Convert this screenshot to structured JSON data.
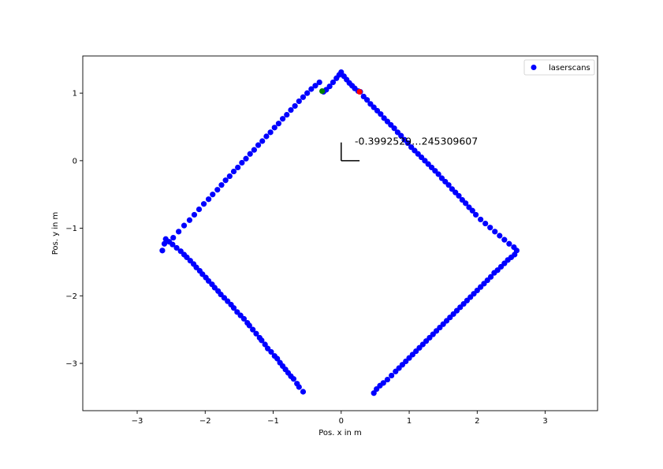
{
  "chart_data": {
    "type": "scatter",
    "title": "",
    "xlabel": "Pos. x in m",
    "ylabel": "Pos. y in m",
    "xlim": [
      -3.8,
      3.77
    ],
    "ylim": [
      -3.7,
      1.55
    ],
    "x_ticks": [
      -3,
      -2,
      -1,
      0,
      1,
      2,
      3
    ],
    "x_tick_labels": [
      "−3",
      "−2",
      "−1",
      "0",
      "1",
      "2",
      "3"
    ],
    "y_ticks": [
      1,
      0,
      -1,
      -2,
      -3
    ],
    "y_tick_labels": [
      "1",
      "0",
      "−1",
      "−2",
      "−3"
    ],
    "grid": false,
    "legend": {
      "entries": [
        "laserscans"
      ],
      "placement": "top-right"
    },
    "annotation": {
      "text": "-0.3992529…245309607",
      "x": 0.2,
      "y": 0.24
    },
    "axes_indicator": {
      "origin": [
        0,
        0
      ],
      "x_end": [
        0.27,
        0
      ],
      "y_end": [
        0,
        0.27
      ]
    },
    "colors": {
      "scan": "#0000ff",
      "green_marker": "#008000",
      "red_marker": "#ff0000",
      "axes": "#000000"
    },
    "series": [
      {
        "name": "laserscans",
        "points": [
          [
            -0.56,
            -3.42
          ],
          [
            -0.62,
            -3.35
          ],
          [
            -0.65,
            -3.3
          ],
          [
            -0.7,
            -3.23
          ],
          [
            -0.74,
            -3.19
          ],
          [
            -0.78,
            -3.14
          ],
          [
            -0.82,
            -3.09
          ],
          [
            -0.86,
            -3.04
          ],
          [
            -0.9,
            -2.99
          ],
          [
            -0.94,
            -2.93
          ],
          [
            -0.98,
            -2.89
          ],
          [
            -1.03,
            -2.83
          ],
          [
            -1.08,
            -2.78
          ],
          [
            -1.12,
            -2.72
          ],
          [
            -1.17,
            -2.66
          ],
          [
            -1.2,
            -2.62
          ],
          [
            -1.25,
            -2.56
          ],
          [
            -1.3,
            -2.5
          ],
          [
            -1.35,
            -2.44
          ],
          [
            -1.38,
            -2.4
          ],
          [
            -1.43,
            -2.34
          ],
          [
            -1.48,
            -2.29
          ],
          [
            -1.53,
            -2.24
          ],
          [
            -1.58,
            -2.18
          ],
          [
            -1.62,
            -2.13
          ],
          [
            -1.67,
            -2.08
          ],
          [
            -1.72,
            -2.03
          ],
          [
            -1.77,
            -1.98
          ],
          [
            -1.81,
            -1.93
          ],
          [
            -1.86,
            -1.88
          ],
          [
            -1.9,
            -1.83
          ],
          [
            -1.95,
            -1.78
          ],
          [
            -1.99,
            -1.73
          ],
          [
            -2.04,
            -1.68
          ],
          [
            -2.08,
            -1.63
          ],
          [
            -2.13,
            -1.58
          ],
          [
            -2.17,
            -1.53
          ],
          [
            -2.22,
            -1.48
          ],
          [
            -2.27,
            -1.43
          ],
          [
            -2.31,
            -1.39
          ],
          [
            -2.36,
            -1.34
          ],
          [
            -2.42,
            -1.29
          ],
          [
            -2.48,
            -1.24
          ],
          [
            -2.53,
            -1.2
          ],
          [
            -2.58,
            -1.16
          ],
          [
            -2.63,
            -1.33
          ],
          [
            -2.6,
            -1.23
          ],
          [
            -2.47,
            -1.14
          ],
          [
            -2.39,
            -1.05
          ],
          [
            -2.31,
            -0.96
          ],
          [
            -2.23,
            -0.88
          ],
          [
            -2.16,
            -0.8
          ],
          [
            -2.09,
            -0.72
          ],
          [
            -2.02,
            -0.64
          ],
          [
            -1.95,
            -0.57
          ],
          [
            -1.89,
            -0.5
          ],
          [
            -1.82,
            -0.43
          ],
          [
            -1.76,
            -0.36
          ],
          [
            -1.7,
            -0.29
          ],
          [
            -1.64,
            -0.23
          ],
          [
            -1.58,
            -0.16
          ],
          [
            -1.52,
            -0.1
          ],
          [
            -1.46,
            -0.03
          ],
          [
            -1.4,
            0.03
          ],
          [
            -1.34,
            0.1
          ],
          [
            -1.28,
            0.16
          ],
          [
            -1.22,
            0.23
          ],
          [
            -1.16,
            0.29
          ],
          [
            -1.1,
            0.36
          ],
          [
            -1.04,
            0.42
          ],
          [
            -0.98,
            0.49
          ],
          [
            -0.92,
            0.55
          ],
          [
            -0.86,
            0.62
          ],
          [
            -0.8,
            0.68
          ],
          [
            -0.74,
            0.75
          ],
          [
            -0.68,
            0.81
          ],
          [
            -0.62,
            0.88
          ],
          [
            -0.56,
            0.94
          ],
          [
            -0.5,
            1.0
          ],
          [
            -0.44,
            1.06
          ],
          [
            -0.38,
            1.11
          ],
          [
            -0.32,
            1.16
          ],
          [
            -0.26,
            1.02
          ],
          [
            -0.22,
            1.05
          ],
          [
            -0.17,
            1.1
          ],
          [
            -0.12,
            1.16
          ],
          [
            -0.07,
            1.22
          ],
          [
            -0.03,
            1.27
          ],
          [
            0.0,
            1.31
          ],
          [
            0.04,
            1.25
          ],
          [
            0.08,
            1.2
          ],
          [
            0.12,
            1.15
          ],
          [
            0.16,
            1.11
          ],
          [
            0.2,
            1.07
          ],
          [
            0.25,
            1.03
          ],
          [
            0.28,
            1.02
          ],
          [
            0.33,
            0.95
          ],
          [
            0.38,
            0.9
          ],
          [
            0.43,
            0.84
          ],
          [
            0.48,
            0.79
          ],
          [
            0.53,
            0.74
          ],
          [
            0.58,
            0.69
          ],
          [
            0.63,
            0.63
          ],
          [
            0.68,
            0.58
          ],
          [
            0.73,
            0.53
          ],
          [
            0.78,
            0.48
          ],
          [
            0.83,
            0.42
          ],
          [
            0.88,
            0.37
          ],
          [
            0.93,
            0.31
          ],
          [
            0.98,
            0.26
          ],
          [
            1.03,
            0.2
          ],
          [
            1.08,
            0.15
          ],
          [
            1.13,
            0.1
          ],
          [
            1.18,
            0.05
          ],
          [
            1.23,
            0.0
          ],
          [
            1.28,
            -0.05
          ],
          [
            1.33,
            -0.1
          ],
          [
            1.38,
            -0.15
          ],
          [
            1.43,
            -0.2
          ],
          [
            1.48,
            -0.26
          ],
          [
            1.53,
            -0.31
          ],
          [
            1.58,
            -0.36
          ],
          [
            1.63,
            -0.42
          ],
          [
            1.68,
            -0.47
          ],
          [
            1.73,
            -0.52
          ],
          [
            1.78,
            -0.58
          ],
          [
            1.83,
            -0.63
          ],
          [
            1.88,
            -0.69
          ],
          [
            1.93,
            -0.74
          ],
          [
            1.98,
            -0.8
          ],
          [
            2.05,
            -0.87
          ],
          [
            2.12,
            -0.93
          ],
          [
            2.19,
            -0.99
          ],
          [
            2.26,
            -1.05
          ],
          [
            2.33,
            -1.11
          ],
          [
            2.4,
            -1.17
          ],
          [
            2.47,
            -1.23
          ],
          [
            2.54,
            -1.28
          ],
          [
            2.58,
            -1.33
          ],
          [
            2.55,
            -1.39
          ],
          [
            2.5,
            -1.43
          ],
          [
            2.45,
            -1.47
          ],
          [
            2.4,
            -1.52
          ],
          [
            2.35,
            -1.57
          ],
          [
            2.3,
            -1.62
          ],
          [
            2.25,
            -1.66
          ],
          [
            2.2,
            -1.72
          ],
          [
            2.15,
            -1.77
          ],
          [
            2.1,
            -1.82
          ],
          [
            2.05,
            -1.87
          ],
          [
            2.0,
            -1.92
          ],
          [
            1.95,
            -1.97
          ],
          [
            1.9,
            -2.02
          ],
          [
            1.85,
            -2.07
          ],
          [
            1.8,
            -2.12
          ],
          [
            1.75,
            -2.17
          ],
          [
            1.7,
            -2.22
          ],
          [
            1.65,
            -2.27
          ],
          [
            1.6,
            -2.32
          ],
          [
            1.55,
            -2.37
          ],
          [
            1.5,
            -2.42
          ],
          [
            1.45,
            -2.47
          ],
          [
            1.4,
            -2.52
          ],
          [
            1.35,
            -2.57
          ],
          [
            1.3,
            -2.62
          ],
          [
            1.25,
            -2.67
          ],
          [
            1.2,
            -2.72
          ],
          [
            1.15,
            -2.77
          ],
          [
            1.1,
            -2.82
          ],
          [
            1.05,
            -2.87
          ],
          [
            1.0,
            -2.92
          ],
          [
            0.95,
            -2.97
          ],
          [
            0.9,
            -3.02
          ],
          [
            0.85,
            -3.07
          ],
          [
            0.8,
            -3.12
          ],
          [
            0.74,
            -3.18
          ],
          [
            0.68,
            -3.24
          ],
          [
            0.62,
            -3.29
          ],
          [
            0.57,
            -3.33
          ],
          [
            0.52,
            -3.38
          ],
          [
            0.48,
            -3.44
          ]
        ]
      }
    ],
    "highlighted_points": [
      {
        "color": "green",
        "x": -0.28,
        "y": 1.03
      },
      {
        "color": "red",
        "x": 0.27,
        "y": 1.02
      }
    ]
  }
}
